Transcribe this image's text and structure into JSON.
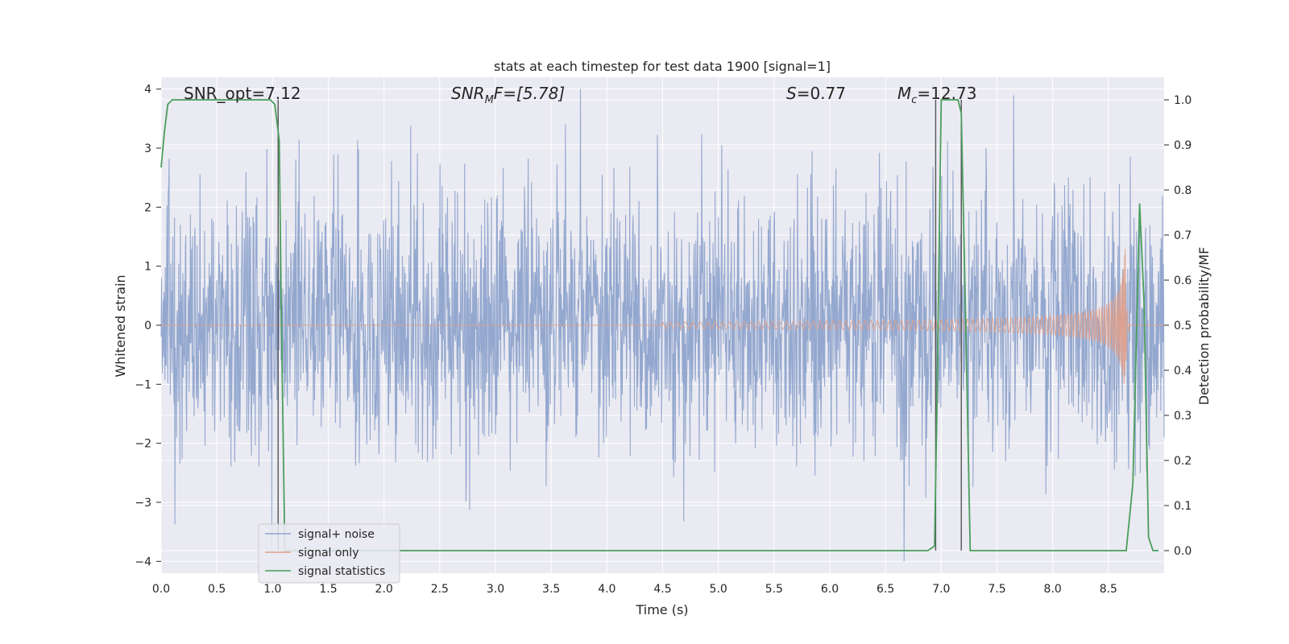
{
  "chart_data": {
    "type": "line",
    "title": "stats at each timestep for test data 1900 [signal=1]",
    "xlabel": "Time (s)",
    "ylabel": "Whitened strain",
    "ylabel_right": "Detection probability/MF",
    "xlim": [
      0.0,
      9.0
    ],
    "ylim": [
      -4.2,
      4.2
    ],
    "ylim_right": [
      -0.05,
      1.05
    ],
    "x_ticks": [
      "0.0",
      "0.5",
      "1.0",
      "1.5",
      "2.0",
      "2.5",
      "3.0",
      "3.5",
      "4.0",
      "4.5",
      "5.0",
      "5.5",
      "6.0",
      "6.5",
      "7.0",
      "7.5",
      "8.0",
      "8.5"
    ],
    "y_ticks": [
      "4",
      "3",
      "2",
      "1",
      "0",
      "−1",
      "−2",
      "−3",
      "−4"
    ],
    "y_ticks_right": [
      "1.0",
      "0.9",
      "0.8",
      "0.7",
      "0.6",
      "0.5",
      "0.4",
      "0.3",
      "0.2",
      "0.1",
      "0.0"
    ],
    "annotations": {
      "snr_opt": "SNR_opt=7.12",
      "snr_mf_main": "SNR",
      "snr_mf_sub": "M",
      "snr_mf_rest": "F=[5.78]",
      "s_main": "S",
      "s_rest": "=0.77",
      "mc_main": "M",
      "mc_sub": "c",
      "mc_rest": "=12.73"
    },
    "legend": {
      "placement": "lower-left",
      "entries": [
        "signal+ noise",
        "signal only",
        "signal statistics"
      ]
    },
    "grid": true,
    "vertical_markers_x": [
      1.05,
      6.95,
      7.18
    ],
    "series": [
      {
        "name": "signal+ noise",
        "color": "#8fa4cc",
        "style": "noise, roughly gaussian with std ~1.1, peaks near ±4"
      },
      {
        "name": "signal only",
        "color": "#e0a08a",
        "chirp": {
          "start": 4.5,
          "peak_time": 8.65,
          "peak_amplitude": 1.35
        }
      },
      {
        "name": "signal statistics",
        "color": "#4a9e5c",
        "x": [
          0.0,
          0.03,
          0.06,
          0.1,
          0.3,
          0.5,
          0.7,
          0.9,
          0.98,
          1.02,
          1.06,
          1.08,
          1.11,
          1.15,
          2.0,
          3.0,
          4.0,
          5.0,
          6.0,
          6.88,
          6.94,
          6.96,
          7.0,
          7.1,
          7.15,
          7.18,
          7.22,
          7.26,
          7.5,
          8.0,
          8.6,
          8.66,
          8.72,
          8.78,
          8.82,
          8.86,
          8.9,
          8.95
        ],
        "values": [
          0.85,
          0.93,
          0.99,
          1.0,
          1.0,
          1.0,
          1.0,
          1.0,
          1.0,
          0.99,
          0.91,
          0.5,
          0.0,
          0.0,
          0.0,
          0.0,
          0.0,
          0.0,
          0.0,
          0.0,
          0.01,
          0.3,
          1.0,
          1.0,
          1.0,
          0.97,
          0.5,
          0.0,
          0.0,
          0.0,
          0.0,
          0.0,
          0.15,
          0.77,
          0.55,
          0.03,
          0.0,
          0.0
        ]
      }
    ]
  }
}
